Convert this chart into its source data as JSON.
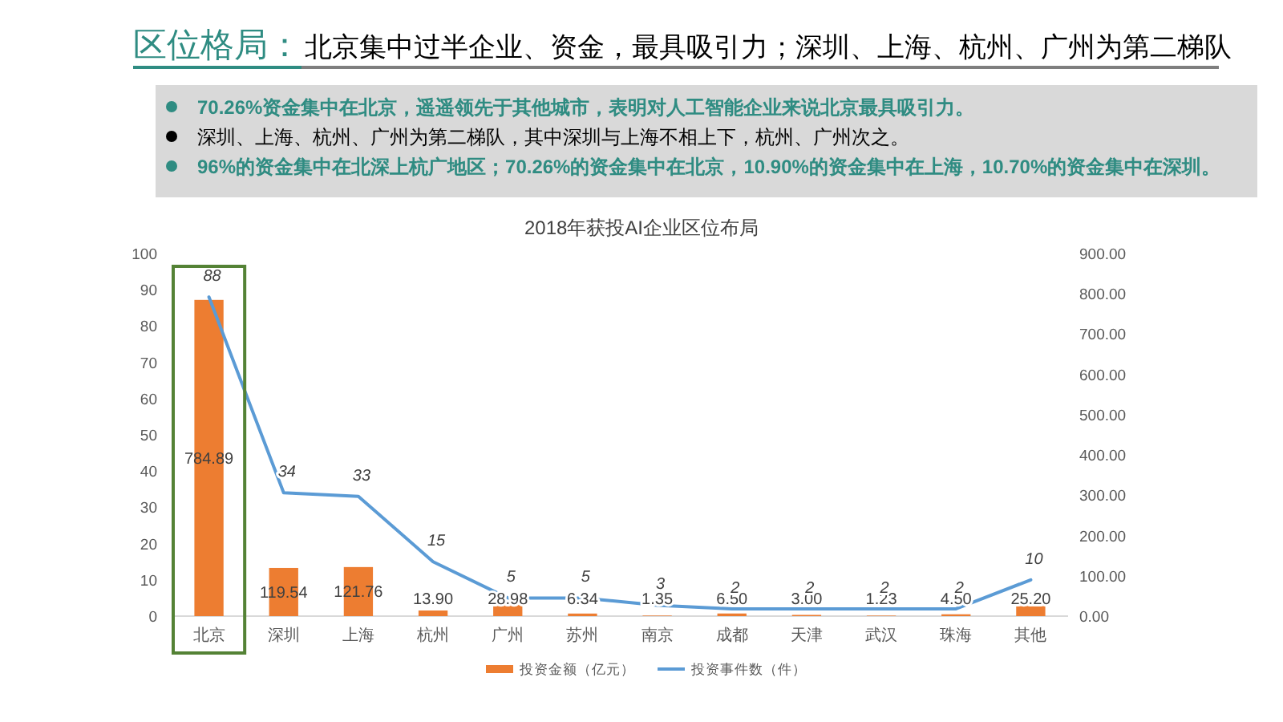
{
  "chart_data": [
    {
      "type": "other",
      "title": "区位格局：",
      "subtitle": "北京集中过半企业、资金，最具吸引力；深圳、上海、杭州、广州为第二梯队",
      "annotations": [
        "70.26%资金集中在北京，遥遥领先于其他城市，表明对人工智能企业来说北京最具吸引力。",
        "深圳、上海、杭州、广州为第二梯队，其中深圳与上海不相上下，杭州、广州次之。",
        "96%的资金集中在北深上杭广地区；70.26%的资金集中在北京，10.90%的资金集中在上海，10.70%的资金集中在深圳。"
      ]
    },
    {
      "type": "bar",
      "title": "2018年获投AI企业区位布局",
      "categories": [
        "北京",
        "深圳",
        "上海",
        "杭州",
        "广州",
        "苏州",
        "南京",
        "成都",
        "天津",
        "武汉",
        "珠海",
        "其他"
      ],
      "series": [
        {
          "name": "投资金额（亿元）",
          "type": "bar",
          "axis": "y2",
          "color": "#ed7d31",
          "values": [
            784.89,
            119.54,
            121.76,
            13.9,
            28.98,
            6.34,
            1.35,
            6.5,
            3.0,
            1.23,
            4.5,
            25.2
          ],
          "value_labels": [
            "784.89",
            "119.54",
            "121.76",
            "13.90",
            "28.98",
            "6.34",
            "1.35",
            "6.50",
            "3.00",
            "1.23",
            "4.50",
            "25.20"
          ]
        },
        {
          "name": "投资事件数（件）",
          "type": "line",
          "color": "#5b9bd5",
          "values": [
            88,
            34,
            33,
            15,
            5,
            5,
            3,
            2,
            2,
            2,
            2,
            10
          ],
          "value_labels": [
            "88",
            "34",
            "33",
            "15",
            "5",
            "5",
            "3",
            "2",
            "2",
            "2",
            "2",
            "10"
          ]
        }
      ],
      "ylim": [
        0,
        100
      ],
      "yticks": [
        0,
        10,
        20,
        30,
        40,
        50,
        60,
        70,
        80,
        90,
        100
      ],
      "y2lim": [
        0,
        900
      ],
      "y2ticks": [
        {
          "value": 0,
          "label": "0.00"
        },
        {
          "value": 100,
          "label": "100.00"
        },
        {
          "value": 200,
          "label": "200.00"
        },
        {
          "value": 300,
          "label": "300.00"
        },
        {
          "value": 400,
          "label": "400.00"
        },
        {
          "value": 500,
          "label": "500.00"
        },
        {
          "value": 600,
          "label": "600.00"
        },
        {
          "value": 700,
          "label": "700.00"
        },
        {
          "value": 800,
          "label": "800.00"
        },
        {
          "value": 900,
          "label": "900.00"
        }
      ],
      "legend": "bottom"
    }
  ]
}
